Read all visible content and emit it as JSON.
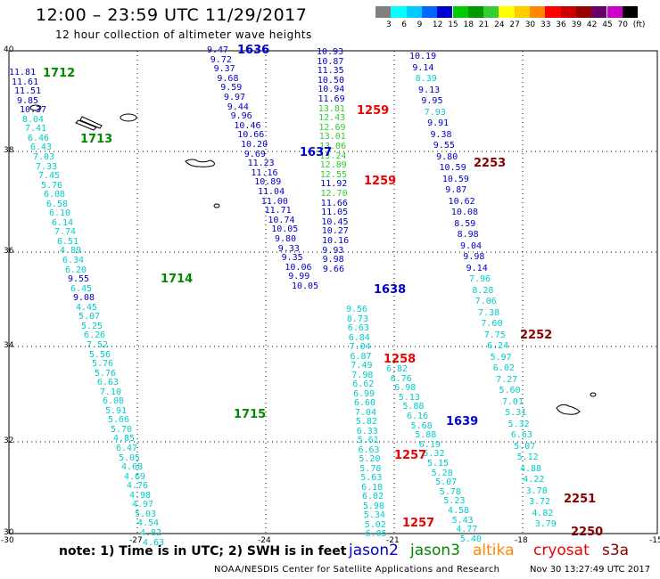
{
  "title": "12:00 – 23:59 UTC 11/29/2017",
  "subtitle": "12 hour collection of altimeter wave heights",
  "note": "note: 1) Time is in UTC; 2) SWH is in feet",
  "footer": "NOAA/NESDIS Center for Satellite Applications and Research",
  "footer_time": "Nov 30 13:27:49 UTC 2017",
  "satellites": [
    {
      "name": "jason2",
      "color": "#0000cc"
    },
    {
      "name": "jason3",
      "color": "#008800"
    },
    {
      "name": "altika",
      "color": "#ff8800"
    },
    {
      "name": "cryosat",
      "color": "#ee0000"
    },
    {
      "name": "s3a",
      "color": "#880000"
    }
  ],
  "colorbar": {
    "ticks": [
      "3",
      "6",
      "9",
      "12",
      "15",
      "18",
      "21",
      "24",
      "27",
      "30",
      "33",
      "36",
      "39",
      "42",
      "45",
      "70",
      "(ft)"
    ],
    "colors": [
      "#808080",
      "#00ffff",
      "#00ccff",
      "#0066ff",
      "#0000cc",
      "#00cc00",
      "#009900",
      "#33cc33",
      "#ffff00",
      "#ffcc00",
      "#ff8800",
      "#ff0000",
      "#cc0000",
      "#990000",
      "#660066",
      "#cc00cc",
      "#000000"
    ]
  },
  "axes": {
    "lon_ticks": [
      "-30",
      "-27",
      "-24",
      "-21",
      "-18",
      "-15"
    ],
    "lat_ticks": [
      "40",
      "38",
      "36",
      "34",
      "32",
      "30"
    ]
  },
  "tracks": [
    {
      "id": "1712",
      "time_color": "#008800",
      "label_color": "#00cccc",
      "values": [
        "11.81",
        "11.61",
        "11.51",
        "9.85",
        "10.37",
        "8.04",
        "7.41",
        "6.46",
        "6.43",
        "7.03",
        "7.33",
        "7.45",
        "5.76",
        "6.08",
        "6.58",
        "6.10",
        "6.14",
        "7.74",
        "6.51",
        "4.89",
        "6.34",
        "6.20",
        "9.55",
        "6.45",
        "9.08",
        "4.45",
        "5.07",
        "5.25",
        "6.26",
        "7.52",
        "5.56",
        "5.76",
        "5.76",
        "6.63",
        "7.10",
        "6.08",
        "5.91",
        "5.66",
        "5.70",
        "4.85",
        "6.47",
        "5.05",
        "4.68",
        "4.69",
        "4.76",
        "4.98",
        "4.97",
        "5.03",
        "4.54",
        "4.82",
        "4.63"
      ]
    },
    {
      "id": "1636",
      "time_color": "#0000cc",
      "label_color": "#0000cc",
      "values": [
        "9.47",
        "9.72",
        "9.37",
        "9.68",
        "9.59",
        "9.97",
        "9.44",
        "9.96",
        "10.46",
        "10.66",
        "10.20",
        "9.69",
        "11.23",
        "11.16",
        "10.89",
        "11.04",
        "11.00",
        "11.71",
        "10.74",
        "10.05",
        "9.80",
        "9.33",
        "9.35",
        "10.06",
        "9.99",
        "10.05"
      ]
    },
    {
      "id": "1637",
      "time_color": "#0000cc",
      "label_color": "#0000cc",
      "values": [
        "10.93",
        "10.87",
        "11.35",
        "10.50",
        "10.94",
        "11.69",
        "13.81",
        "12.43",
        "12.69",
        "13.01",
        "13.06",
        "13.24",
        "12.89",
        "12.55",
        "11.92",
        "12.70",
        "11.66",
        "11.05",
        "10.45",
        "10.27",
        "10.16",
        "9.93",
        "9.98",
        "9.66"
      ]
    },
    {
      "id": "1638",
      "time_color": "#0000cc",
      "label_color": "#00cccc",
      "values": [
        "9.56",
        "8.73",
        "6.63",
        "6.84",
        "7.04",
        "6.87",
        "7.49",
        "7.98",
        "6.62",
        "6.99",
        "6.60",
        "7.04",
        "5.82",
        "6.33",
        "5.61",
        "6.63",
        "5.20",
        "5.78",
        "5.63",
        "6.18",
        "6.02",
        "5.98",
        "5.34",
        "5.02",
        "6.05"
      ]
    },
    {
      "id": "1639",
      "time_color": "#0000cc",
      "label_color": "#00cccc",
      "values": [
        "6.82",
        "6.76",
        "6.98",
        "5.13",
        "5.88",
        "6.16",
        "5.68",
        "5.88",
        "6.19",
        "5.32",
        "5.15",
        "5.28",
        "5.07",
        "5.78",
        "5.23",
        "4.58",
        "5.43",
        "4.77",
        "5.40"
      ]
    },
    {
      "id": "2253",
      "time_color": "#880000",
      "label_color": "#0000cc",
      "values": [
        "10.19",
        "9.14",
        "8.39",
        "9.13",
        "9.95",
        "7.93",
        "9.91",
        "9.38",
        "9.55",
        "9.80",
        "10.59",
        "10.59",
        "9.87",
        "10.62",
        "10.08",
        "8.59",
        "8.98",
        "9.04",
        "9.98",
        "9.14",
        "7.96",
        "8.28",
        "7.06",
        "7.38",
        "7.60",
        "7.75",
        "6.24",
        "5.97",
        "6.02",
        "7.27",
        "5.60",
        "7.01",
        "5.31",
        "5.32",
        "6.63",
        "5.07",
        "5.12",
        "4.88",
        "4.22",
        "3.78",
        "3.72",
        "4.82",
        "3.79"
      ]
    }
  ],
  "time_labels": [
    {
      "text": "1636",
      "color": "#0000cc"
    },
    {
      "text": "1712",
      "color": "#008800"
    },
    {
      "text": "1713",
      "color": "#008800"
    },
    {
      "text": "1714",
      "color": "#008800"
    },
    {
      "text": "1715",
      "color": "#008800"
    },
    {
      "text": "1637",
      "color": "#0000cc"
    },
    {
      "text": "1638",
      "color": "#0000cc"
    },
    {
      "text": "1639",
      "color": "#0000cc"
    },
    {
      "text": "1259",
      "color": "#ee0000"
    },
    {
      "text": "1259",
      "color": "#ee0000"
    },
    {
      "text": "1258",
      "color": "#ee0000"
    },
    {
      "text": "1257",
      "color": "#ee0000"
    },
    {
      "text": "1257",
      "color": "#ee0000"
    },
    {
      "text": "2253",
      "color": "#880000"
    },
    {
      "text": "2252",
      "color": "#880000"
    },
    {
      "text": "2251",
      "color": "#880000"
    },
    {
      "text": "2250",
      "color": "#880000"
    }
  ]
}
